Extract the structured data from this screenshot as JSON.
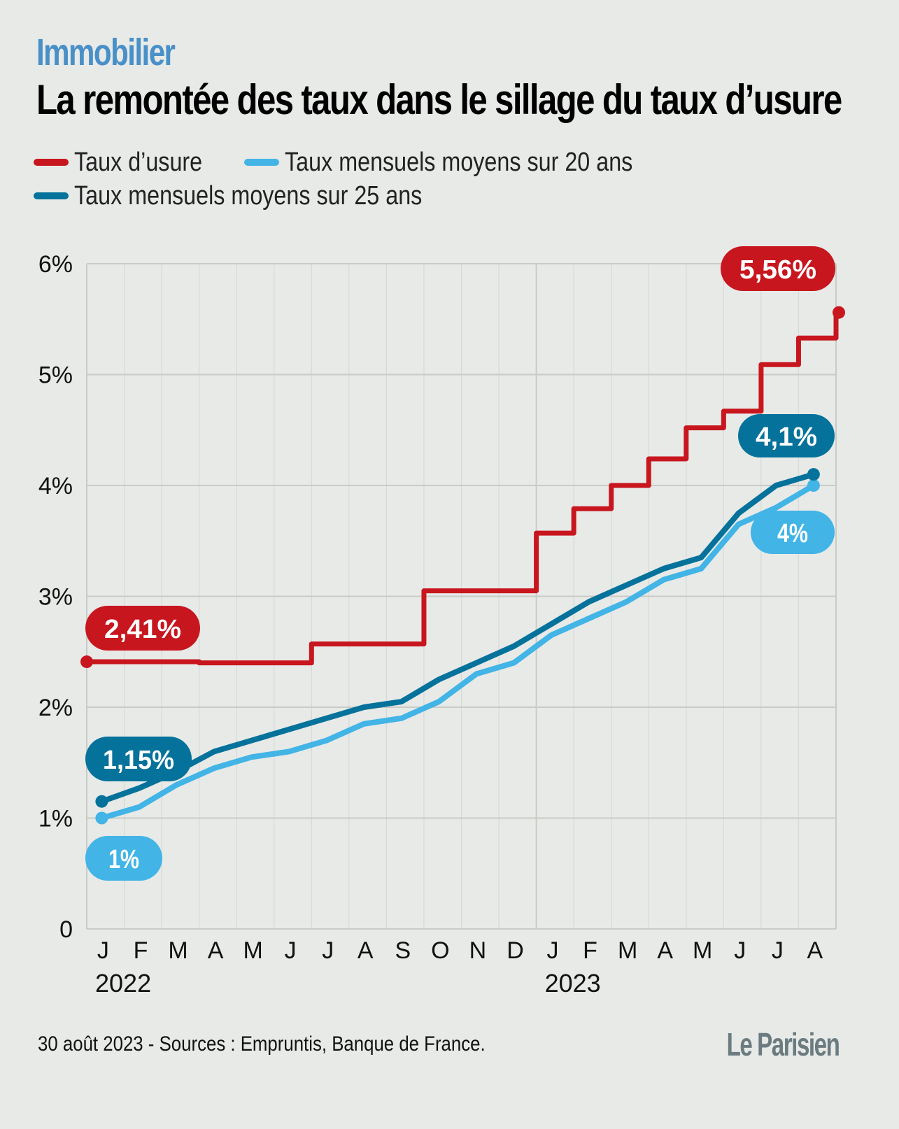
{
  "header": {
    "kicker": "Immobilier",
    "title": "La remontée des taux dans le sillage du taux d’usure"
  },
  "legend": [
    {
      "label": "Taux d’usure",
      "color": "#c8161e"
    },
    {
      "label": "Taux mensuels moyens sur 20 ans",
      "color": "#42b4e6"
    },
    {
      "label": "Taux mensuels moyens sur 25 ans",
      "color": "#04729b"
    }
  ],
  "footer": {
    "source": "30 août 2023 - Sources : Empruntis, Banque de France.",
    "logo": "Le Parisien"
  },
  "chart_data": {
    "type": "line",
    "title": "La remontée des taux dans le sillage du taux d’usure",
    "xlabel": "",
    "ylabel": "",
    "ylim": [
      0,
      6
    ],
    "yticks": [
      "0",
      "1%",
      "2%",
      "3%",
      "4%",
      "5%",
      "6%"
    ],
    "grid": true,
    "legend_position": "top-left",
    "categories": [
      "J",
      "F",
      "M",
      "A",
      "M",
      "J",
      "J",
      "A",
      "S",
      "O",
      "N",
      "D",
      "J",
      "F",
      "M",
      "A",
      "M",
      "J",
      "J",
      "A"
    ],
    "years": [
      {
        "label": "2022",
        "start_index": 0
      },
      {
        "label": "2023",
        "start_index": 12
      }
    ],
    "series": [
      {
        "name": "Taux d’usure",
        "color": "#c8161e",
        "style": "step",
        "steps": [
          {
            "from": 0,
            "to": 3,
            "value": 2.41
          },
          {
            "from": 3,
            "to": 6,
            "value": 2.4
          },
          {
            "from": 6,
            "to": 9,
            "value": 2.57
          },
          {
            "from": 9,
            "to": 12,
            "value": 3.05
          },
          {
            "from": 12,
            "to": 13,
            "value": 3.57
          },
          {
            "from": 13,
            "to": 14,
            "value": 3.79
          },
          {
            "from": 14,
            "to": 15,
            "value": 4.0
          },
          {
            "from": 15,
            "to": 16,
            "value": 4.24
          },
          {
            "from": 16,
            "to": 17,
            "value": 4.52
          },
          {
            "from": 17,
            "to": 18,
            "value": 4.67
          },
          {
            "from": 18,
            "to": 19,
            "value": 5.09
          },
          {
            "from": 19,
            "to": 20,
            "value": 5.33
          },
          {
            "from": 20,
            "to": 20,
            "value": 5.56
          }
        ],
        "start_label": "2,41%",
        "end_label": "5,56%"
      },
      {
        "name": "Taux mensuels moyens sur 20 ans",
        "color": "#42b4e6",
        "values": [
          1.0,
          1.1,
          1.3,
          1.45,
          1.55,
          1.6,
          1.7,
          1.85,
          1.9,
          2.05,
          2.3,
          2.4,
          2.65,
          2.8,
          2.95,
          3.15,
          3.25,
          3.65,
          3.8,
          4.0
        ],
        "start_label": "1%",
        "end_label": "4%"
      },
      {
        "name": "Taux mensuels moyens sur 25 ans",
        "color": "#04729b",
        "values": [
          1.15,
          1.27,
          1.42,
          1.6,
          1.7,
          1.8,
          1.9,
          2.0,
          2.05,
          2.25,
          2.4,
          2.55,
          2.75,
          2.95,
          3.1,
          3.25,
          3.35,
          3.75,
          4.0,
          4.1
        ],
        "start_label": "1,15%",
        "end_label": "4,1%"
      }
    ]
  }
}
